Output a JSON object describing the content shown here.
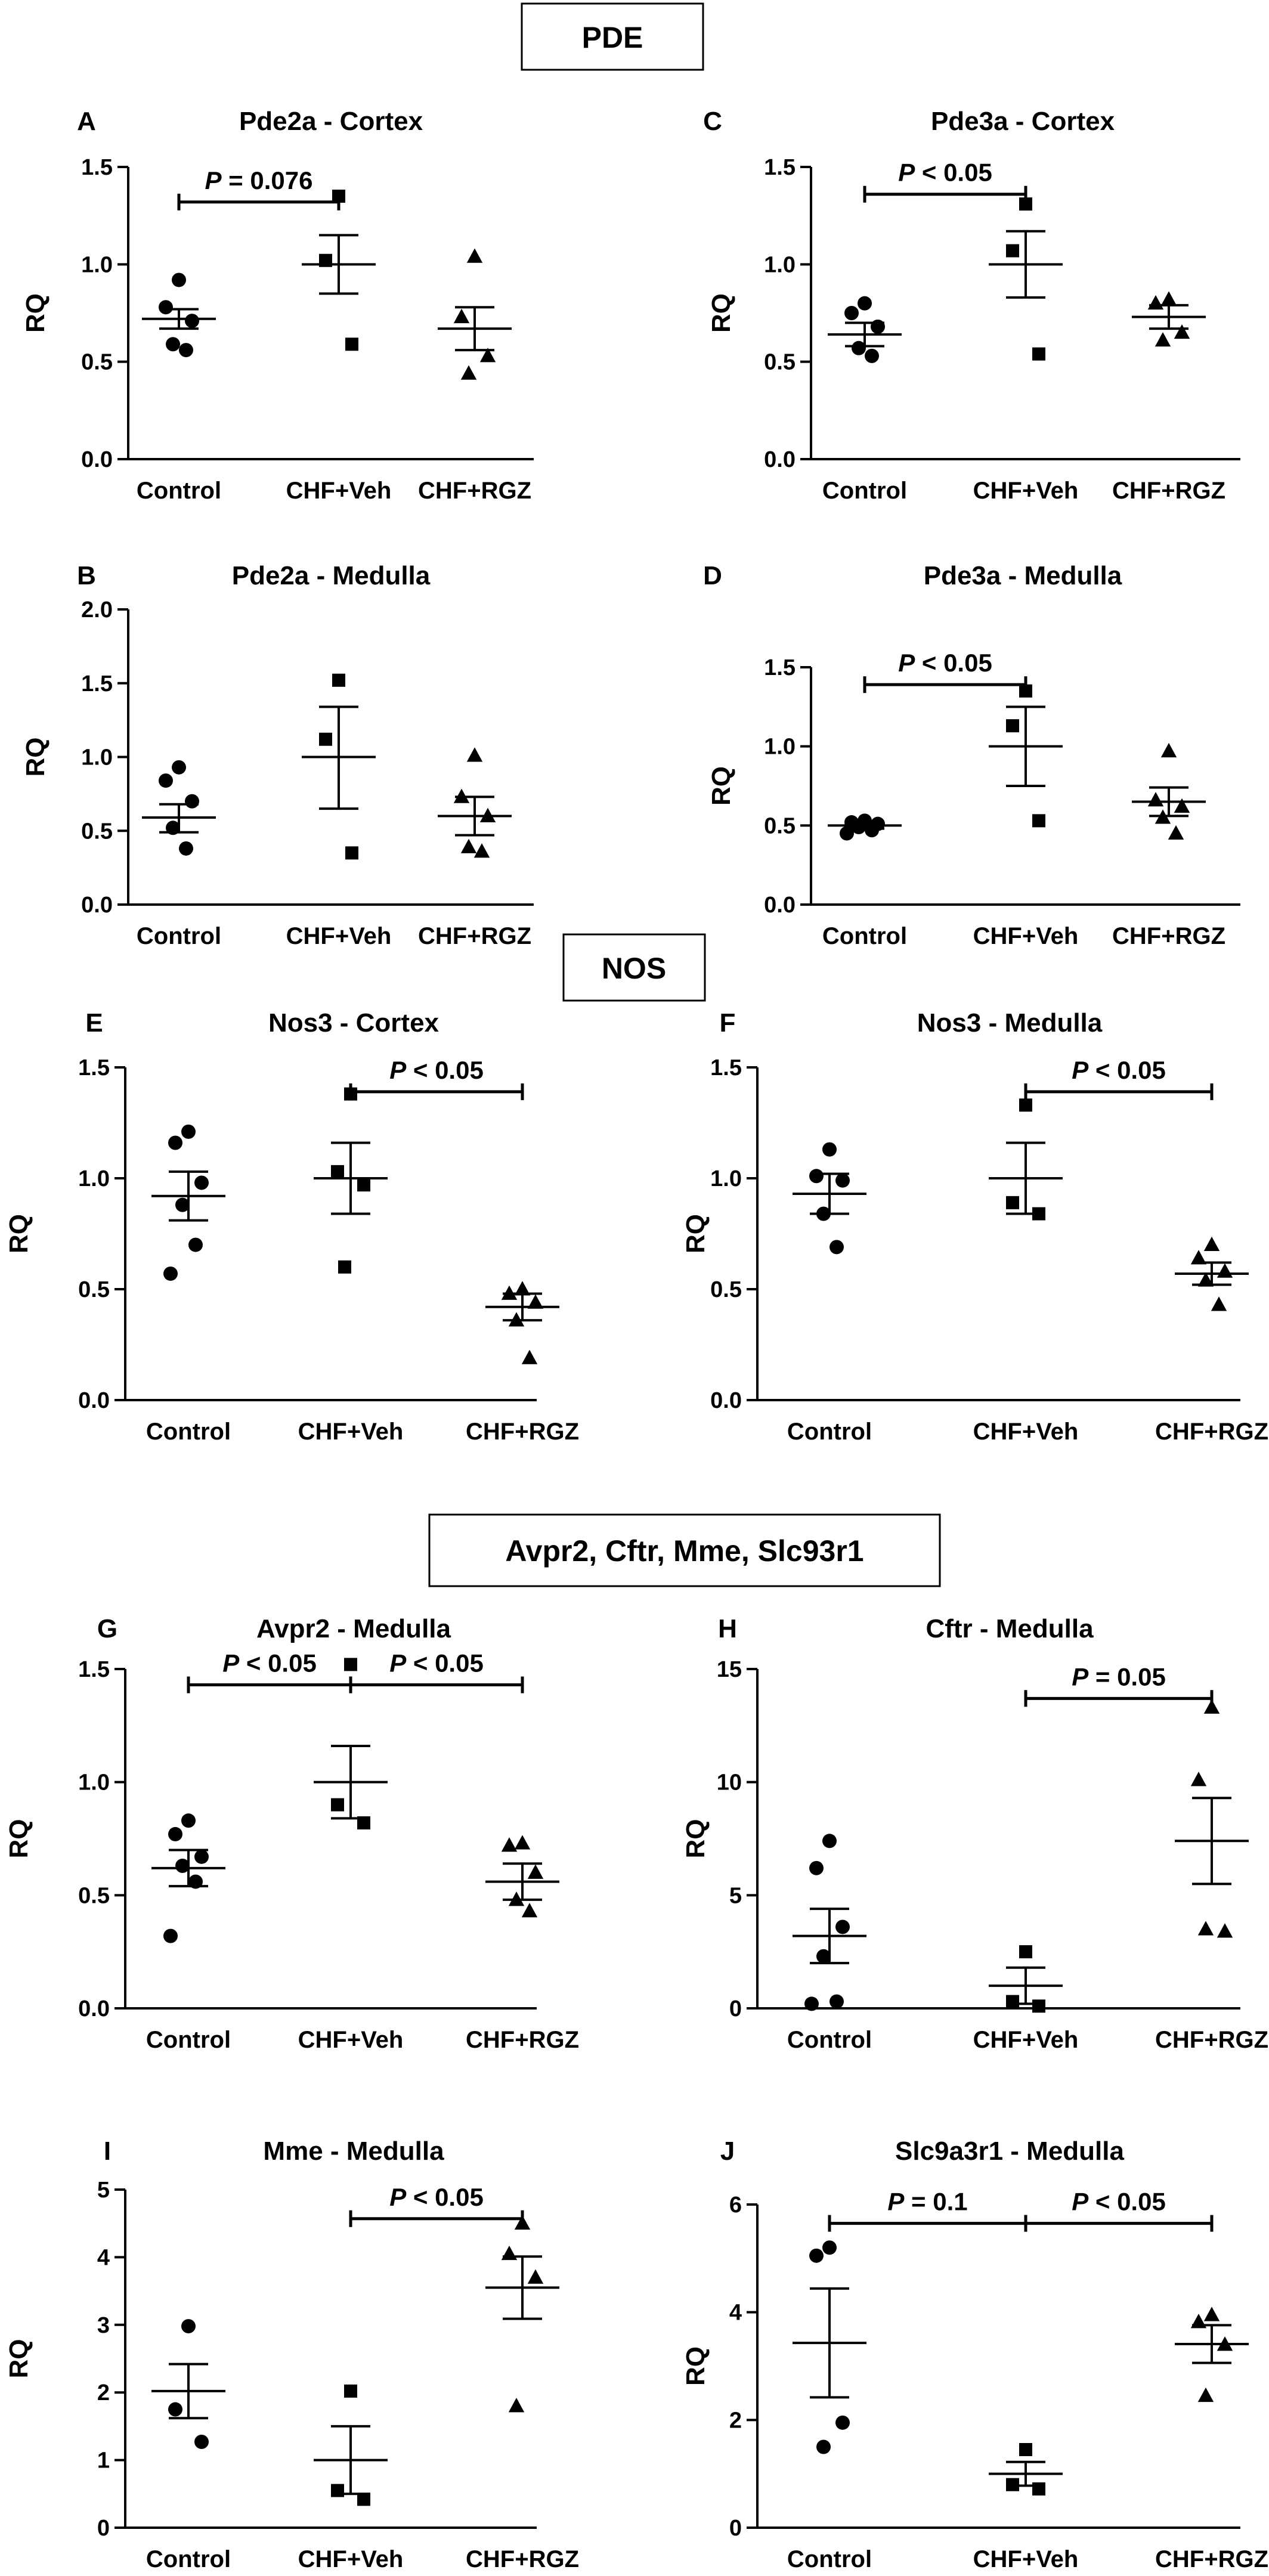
{
  "sections": [
    {
      "title": "PDE"
    },
    {
      "title": "NOS"
    },
    {
      "title": "Avpr2, Cftr, Mme, Slc93r1"
    }
  ],
  "chart_data": [
    {
      "letter": "A",
      "title": "Pde2a - Cortex",
      "type": "scatter",
      "ylabel": "RQ",
      "ylim": [
        0,
        1.5
      ],
      "yticks": [
        "0.0",
        "0.5",
        "1.0",
        "1.5"
      ],
      "categories": [
        "Control",
        "CHF+Veh",
        "CHF+RGZ"
      ],
      "groups": [
        {
          "name": "Control",
          "marker": "circle",
          "points": [
            0.92,
            0.78,
            0.71,
            0.59,
            0.56
          ],
          "mean": 0.72,
          "sem_low": 0.67,
          "sem_high": 0.77
        },
        {
          "name": "CHF+Veh",
          "marker": "square",
          "points": [
            1.35,
            1.02,
            0.59
          ],
          "mean": 1.0,
          "sem_low": 0.85,
          "sem_high": 1.15
        },
        {
          "name": "CHF+RGZ",
          "marker": "triangle",
          "points": [
            1.04,
            0.73,
            0.53,
            0.44
          ],
          "mean": 0.67,
          "sem_low": 0.56,
          "sem_high": 0.78
        }
      ],
      "annotations": [
        {
          "text": "P = 0.076",
          "from": 0,
          "to": 1,
          "y": 1.32
        }
      ]
    },
    {
      "letter": "C",
      "title": "Pde3a - Cortex",
      "type": "scatter",
      "ylabel": "RQ",
      "ylim": [
        0,
        1.5
      ],
      "yticks": [
        "0.0",
        "0.5",
        "1.0",
        "1.5"
      ],
      "categories": [
        "Control",
        "CHF+Veh",
        "CHF+RGZ"
      ],
      "groups": [
        {
          "name": "Control",
          "marker": "circle",
          "points": [
            0.8,
            0.75,
            0.68,
            0.57,
            0.53
          ],
          "mean": 0.64,
          "sem_low": 0.58,
          "sem_high": 0.7
        },
        {
          "name": "CHF+Veh",
          "marker": "square",
          "points": [
            1.31,
            1.07,
            0.54
          ],
          "mean": 1.0,
          "sem_low": 0.83,
          "sem_high": 1.17
        },
        {
          "name": "CHF+RGZ",
          "marker": "triangle",
          "points": [
            0.82,
            0.8,
            0.65,
            0.61
          ],
          "mean": 0.73,
          "sem_low": 0.67,
          "sem_high": 0.79
        }
      ],
      "annotations": [
        {
          "text": "P < 0.05",
          "from": 0,
          "to": 1,
          "y": 1.36
        }
      ]
    },
    {
      "letter": "B",
      "title": "Pde2a - Medulla",
      "type": "scatter",
      "ylabel": "RQ",
      "ylim": [
        0,
        2.0
      ],
      "yticks": [
        "0.0",
        "0.5",
        "1.0",
        "1.5",
        "2.0"
      ],
      "categories": [
        "Control",
        "CHF+Veh",
        "CHF+RGZ"
      ],
      "groups": [
        {
          "name": "Control",
          "marker": "circle",
          "points": [
            0.93,
            0.84,
            0.7,
            0.52,
            0.38
          ],
          "mean": 0.59,
          "sem_low": 0.49,
          "sem_high": 0.68
        },
        {
          "name": "CHF+Veh",
          "marker": "square",
          "points": [
            1.52,
            1.12,
            0.35
          ],
          "mean": 1.0,
          "sem_low": 0.65,
          "sem_high": 1.34
        },
        {
          "name": "CHF+RGZ",
          "marker": "triangle",
          "points": [
            1.01,
            0.73,
            0.6,
            0.39,
            0.36
          ],
          "mean": 0.6,
          "sem_low": 0.47,
          "sem_high": 0.73
        }
      ],
      "annotations": []
    },
    {
      "letter": "D",
      "title": "Pde3a - Medulla",
      "type": "scatter",
      "ylabel": "RQ",
      "ylim": [
        0,
        1.5
      ],
      "yticks": [
        "0.0",
        "0.5",
        "1.0",
        "1.5"
      ],
      "categories": [
        "Control",
        "CHF+Veh",
        "CHF+RGZ"
      ],
      "groups": [
        {
          "name": "Control",
          "marker": "circle",
          "points": [
            0.53,
            0.52,
            0.51,
            0.49,
            0.47,
            0.45
          ],
          "mean": 0.5,
          "sem_low": 0.48,
          "sem_high": 0.52
        },
        {
          "name": "CHF+Veh",
          "marker": "square",
          "points": [
            1.35,
            1.13,
            0.53
          ],
          "mean": 1.0,
          "sem_low": 0.75,
          "sem_high": 1.25
        },
        {
          "name": "CHF+RGZ",
          "marker": "triangle",
          "points": [
            0.97,
            0.66,
            0.62,
            0.55,
            0.45
          ],
          "mean": 0.65,
          "sem_low": 0.56,
          "sem_high": 0.74
        }
      ],
      "annotations": [
        {
          "text": "P < 0.05",
          "from": 0,
          "to": 1,
          "y": 1.39
        }
      ]
    },
    {
      "letter": "E",
      "title": "Nos3 - Cortex",
      "type": "scatter",
      "ylabel": "RQ",
      "ylim": [
        0,
        1.5
      ],
      "yticks": [
        "0.0",
        "0.5",
        "1.0",
        "1.5"
      ],
      "categories": [
        "Control",
        "CHF+Veh",
        "CHF+RGZ"
      ],
      "groups": [
        {
          "name": "Control",
          "marker": "circle",
          "points": [
            1.21,
            1.16,
            0.98,
            0.88,
            0.7,
            0.57
          ],
          "mean": 0.92,
          "sem_low": 0.81,
          "sem_high": 1.03
        },
        {
          "name": "CHF+Veh",
          "marker": "square",
          "points": [
            1.38,
            1.03,
            0.97,
            0.6
          ],
          "mean": 1.0,
          "sem_low": 0.84,
          "sem_high": 1.16
        },
        {
          "name": "CHF+RGZ",
          "marker": "triangle",
          "points": [
            0.5,
            0.48,
            0.44,
            0.36,
            0.19
          ],
          "mean": 0.42,
          "sem_low": 0.36,
          "sem_high": 0.48
        }
      ],
      "annotations": [
        {
          "text": "P < 0.05",
          "from": 1,
          "to": 2,
          "y": 1.39
        }
      ]
    },
    {
      "letter": "F",
      "title": "Nos3 - Medulla",
      "type": "scatter",
      "ylabel": "RQ",
      "ylim": [
        0,
        1.5
      ],
      "yticks": [
        "0.0",
        "0.5",
        "1.0",
        "1.5"
      ],
      "categories": [
        "Control",
        "CHF+Veh",
        "CHF+RGZ"
      ],
      "groups": [
        {
          "name": "Control",
          "marker": "circle",
          "points": [
            1.13,
            1.01,
            0.99,
            0.84,
            0.69
          ],
          "mean": 0.93,
          "sem_low": 0.84,
          "sem_high": 1.02
        },
        {
          "name": "CHF+Veh",
          "marker": "square",
          "points": [
            1.33,
            0.89,
            0.84
          ],
          "mean": 1.0,
          "sem_low": 0.84,
          "sem_high": 1.16
        },
        {
          "name": "CHF+RGZ",
          "marker": "triangle",
          "points": [
            0.7,
            0.64,
            0.58,
            0.54,
            0.43
          ],
          "mean": 0.57,
          "sem_low": 0.52,
          "sem_high": 0.62
        }
      ],
      "annotations": [
        {
          "text": "P < 0.05",
          "from": 1,
          "to": 2,
          "y": 1.39
        }
      ]
    },
    {
      "letter": "G",
      "title": "Avpr2 - Medulla",
      "type": "scatter",
      "ylabel": "RQ",
      "ylim": [
        0,
        1.5
      ],
      "yticks": [
        "0.0",
        "0.5",
        "1.0",
        "1.5"
      ],
      "categories": [
        "Control",
        "CHF+Veh",
        "CHF+RGZ"
      ],
      "groups": [
        {
          "name": "Control",
          "marker": "circle",
          "points": [
            0.83,
            0.77,
            0.67,
            0.63,
            0.56,
            0.32
          ],
          "mean": 0.62,
          "sem_low": 0.54,
          "sem_high": 0.7
        },
        {
          "name": "CHF+Veh",
          "marker": "square",
          "points": [
            1.52,
            0.9,
            0.82
          ],
          "mean": 1.0,
          "sem_low": 0.84,
          "sem_high": 1.16
        },
        {
          "name": "CHF+RGZ",
          "marker": "triangle",
          "points": [
            0.73,
            0.72,
            0.6,
            0.48,
            0.43
          ],
          "mean": 0.56,
          "sem_low": 0.48,
          "sem_high": 0.64
        }
      ],
      "annotations": [
        {
          "text": "P < 0.05",
          "from": 0,
          "to": 1,
          "y": 1.43
        },
        {
          "text": "P < 0.05",
          "from": 1,
          "to": 2,
          "y": 1.43
        }
      ]
    },
    {
      "letter": "H",
      "title": "Cftr - Medulla",
      "type": "scatter",
      "ylabel": "RQ",
      "ylim": [
        0,
        15
      ],
      "yticks": [
        "0",
        "5",
        "10",
        "15"
      ],
      "categories": [
        "Control",
        "CHF+Veh",
        "CHF+RGZ"
      ],
      "groups": [
        {
          "name": "Control",
          "marker": "circle",
          "points": [
            7.4,
            6.2,
            3.6,
            2.3,
            0.3,
            0.2
          ],
          "mean": 3.2,
          "sem_low": 2.0,
          "sem_high": 4.4
        },
        {
          "name": "CHF+Veh",
          "marker": "square",
          "points": [
            2.5,
            0.3,
            0.1
          ],
          "mean": 1.0,
          "sem_low": 0.2,
          "sem_high": 1.8
        },
        {
          "name": "CHF+RGZ",
          "marker": "triangle",
          "points": [
            13.3,
            10.1,
            3.4,
            3.5
          ],
          "mean": 7.4,
          "sem_low": 5.5,
          "sem_high": 9.3
        }
      ],
      "annotations": [
        {
          "text": "P = 0.05",
          "from": 1,
          "to": 2,
          "y": 13.7
        }
      ]
    },
    {
      "letter": "I",
      "title": "Mme - Medulla",
      "type": "scatter",
      "ylabel": "RQ",
      "ylim": [
        0,
        5
      ],
      "yticks": [
        "0",
        "1",
        "2",
        "3",
        "4",
        "5"
      ],
      "categories": [
        "Control",
        "CHF+Veh",
        "CHF+RGZ"
      ],
      "groups": [
        {
          "name": "Control",
          "marker": "circle",
          "points": [
            2.98,
            1.75,
            1.27
          ],
          "mean": 2.02,
          "sem_low": 1.62,
          "sem_high": 2.42
        },
        {
          "name": "CHF+Veh",
          "marker": "square",
          "points": [
            2.02,
            0.55,
            0.42
          ],
          "mean": 1.0,
          "sem_low": 0.5,
          "sem_high": 1.5
        },
        {
          "name": "CHF+RGZ",
          "marker": "triangle",
          "points": [
            4.5,
            4.05,
            3.7,
            1.8
          ],
          "mean": 3.55,
          "sem_low": 3.09,
          "sem_high": 4.01
        }
      ],
      "annotations": [
        {
          "text": "P < 0.05",
          "from": 1,
          "to": 2,
          "y": 4.57
        }
      ]
    },
    {
      "letter": "J",
      "title": "Slc9a3r1 - Medulla",
      "type": "scatter",
      "ylabel": "RQ",
      "ylim": [
        0,
        6
      ],
      "yticks": [
        "0",
        "2",
        "4",
        "6"
      ],
      "categories": [
        "Control",
        "CHF+Veh",
        "CHF+RGZ"
      ],
      "groups": [
        {
          "name": "Control",
          "marker": "circle",
          "points": [
            5.2,
            5.05,
            1.95,
            1.5
          ],
          "mean": 3.43,
          "sem_low": 2.42,
          "sem_high": 4.44
        },
        {
          "name": "CHF+Veh",
          "marker": "square",
          "points": [
            1.45,
            0.8,
            0.72
          ],
          "mean": 1.0,
          "sem_low": 0.78,
          "sem_high": 1.22
        },
        {
          "name": "CHF+RGZ",
          "marker": "triangle",
          "points": [
            3.95,
            3.82,
            3.4,
            2.45
          ],
          "mean": 3.41,
          "sem_low": 3.06,
          "sem_high": 3.76
        }
      ],
      "annotations": [
        {
          "text": "P = 0.1",
          "from": 0,
          "to": 1,
          "y": 5.65
        },
        {
          "text": "P < 0.05",
          "from": 1,
          "to": 2,
          "y": 5.65
        }
      ]
    }
  ]
}
